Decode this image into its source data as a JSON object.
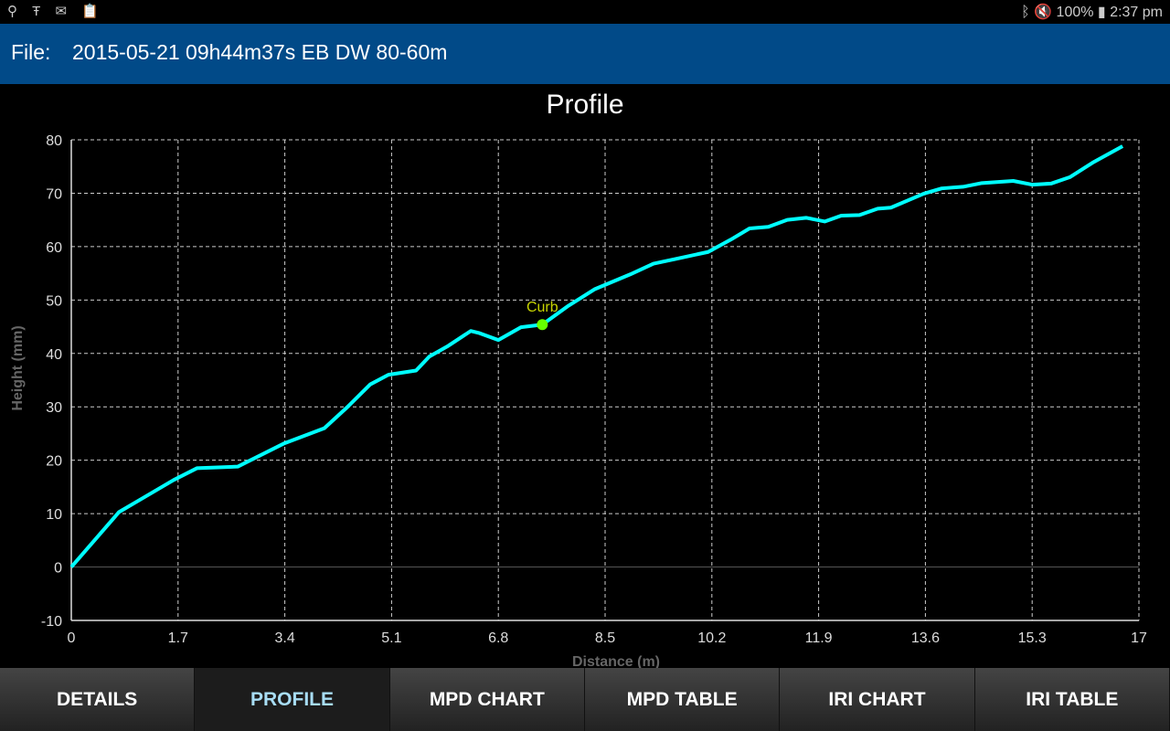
{
  "status_bar": {
    "left_icons": [
      "location-icon",
      "nyt-icon",
      "gmail-icon",
      "clipboard-icon"
    ],
    "battery": "100%",
    "time": "2:37 pm"
  },
  "header": {
    "label": "File:",
    "filename": "2015-05-21 09h44m37s EB DW 80-60m"
  },
  "tabs": [
    {
      "label": "DETAILS"
    },
    {
      "label": "PROFILE",
      "active": true
    },
    {
      "label": "MPD CHART"
    },
    {
      "label": "MPD TABLE"
    },
    {
      "label": "IRI CHART"
    },
    {
      "label": "IRI TABLE"
    }
  ],
  "chart_data": {
    "type": "line",
    "title": "Profile",
    "xlabel": "Distance (m)",
    "ylabel": "Height (mm)",
    "xlim": [
      0,
      17
    ],
    "ylim": [
      -10,
      80
    ],
    "xticks": [
      "0",
      "1.7",
      "3.4",
      "5.1",
      "6.8",
      "8.5",
      "10.2",
      "11.9",
      "13.6",
      "15.3",
      "17"
    ],
    "yticks": [
      "-10",
      "0",
      "10",
      "20",
      "30",
      "40",
      "50",
      "60",
      "70",
      "80"
    ],
    "grid": true,
    "line_color": "#00ffff",
    "series": [
      {
        "x": [
          0,
          0.76,
          1.05,
          1.63,
          2.0,
          2.65,
          3.38,
          4.03,
          4.4,
          4.76,
          5.05,
          5.49,
          5.7,
          6.0,
          6.36,
          6.5,
          6.8,
          7.16,
          7.5,
          7.9,
          8.33,
          8.9,
          9.27,
          9.63,
          10.14,
          10.5,
          10.8,
          11.1,
          11.4,
          11.7,
          12.0,
          12.26,
          12.55,
          12.84,
          13.05,
          13.57,
          13.86,
          14.2,
          14.5,
          15.0,
          15.3,
          15.6,
          15.9,
          16.26,
          16.74
        ],
        "y": [
          0,
          10.3,
          12.3,
          16.3,
          18.5,
          18.8,
          23.1,
          26,
          30,
          34.2,
          36,
          36.8,
          39.4,
          41.4,
          44.2,
          43.8,
          42.5,
          44.9,
          45.4,
          48.8,
          52,
          54.8,
          56.8,
          57.7,
          59,
          61.3,
          63.4,
          63.7,
          65,
          65.4,
          64.7,
          65.8,
          65.9,
          67.1,
          67.3,
          69.9,
          70.9,
          71.2,
          71.9,
          72.3,
          71.6,
          71.8,
          73,
          75.7,
          78.8
        ]
      }
    ],
    "annotations": [
      {
        "label": "Curb",
        "x": 7.5,
        "y": 45.4,
        "color": "#c8d400",
        "marker_color": "#66ff00"
      }
    ]
  }
}
